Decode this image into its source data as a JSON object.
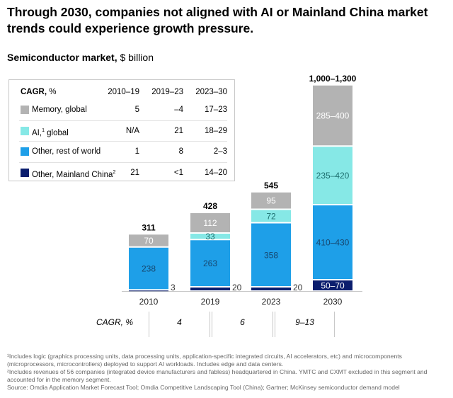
{
  "title": "Through 2030, companies not aligned with AI or Mainland China market trends could experience growth pressure.",
  "subtitle": {
    "bold": "Semiconductor market,",
    "rest": " $ billion"
  },
  "legend": {
    "header": {
      "label_bold": "CAGR,",
      "label_rest": " %",
      "cols": [
        "2010–19",
        "2019–23",
        "2023–30"
      ]
    },
    "rows": [
      {
        "label": "Memory, global",
        "sup": "",
        "values": [
          "5",
          "–4",
          "17–23"
        ],
        "color": "#b3b3b3"
      },
      {
        "label": "AI,",
        "sup": "1",
        "label_after": " global",
        "values": [
          "N/A",
          "21",
          "18–29"
        ],
        "color": "#86e8e6"
      },
      {
        "label": "Other, rest of world",
        "sup": "",
        "values": [
          "1",
          "8",
          "2–3"
        ],
        "color": "#1e9fe8"
      },
      {
        "label": "Other, Mainland China",
        "sup": "2",
        "values": [
          "21",
          "<1",
          "14–20"
        ],
        "color": "#0b1e6e"
      }
    ]
  },
  "chart_data": {
    "type": "bar",
    "stacked": true,
    "categories": [
      "2010",
      "2019",
      "2023",
      "2030"
    ],
    "totals": [
      "311",
      "428",
      "545",
      "1,000–1,300"
    ],
    "series": [
      {
        "name": "Other, Mainland China",
        "values": [
          3,
          20,
          20,
          60
        ],
        "labels": [
          "3",
          "20",
          "20",
          "50–70"
        ],
        "color": "#0b1e6e"
      },
      {
        "name": "Other, rest of world",
        "values": [
          238,
          263,
          358,
          420
        ],
        "labels": [
          "238",
          "263",
          "358",
          "410–430"
        ],
        "color": "#1e9fe8"
      },
      {
        "name": "AI, global",
        "values": [
          0,
          33,
          72,
          327
        ],
        "labels": [
          "",
          "33",
          "72",
          "235–420"
        ],
        "color": "#86e8e6"
      },
      {
        "name": "Memory, global",
        "values": [
          70,
          112,
          95,
          342
        ],
        "labels": [
          "70",
          "112",
          "95",
          "285–400"
        ],
        "color": "#b3b3b3"
      }
    ]
  },
  "cagr_row": {
    "label": "CAGR, %",
    "values": [
      "4",
      "6",
      "9–13"
    ]
  },
  "footnotes": [
    "¹Includes logic (graphics processing units, data processing units, application-specific integrated circuits, AI accelerators, etc) and microcomponents (microprocessors, microcontrollers) deployed to support AI workloads. Includes edge and data centers.",
    "²Includes revenues of 56 companies (integrated device manufacturers and fabless) headquartered in China. YMTC and CXMT excluded in this segment and accounted for in the memory segment.",
    "Source: Omdia Application Market Forecast Tool; Omdia Competitive Landscaping Tool (China); Gartner; McKinsey semiconductor demand model"
  ]
}
